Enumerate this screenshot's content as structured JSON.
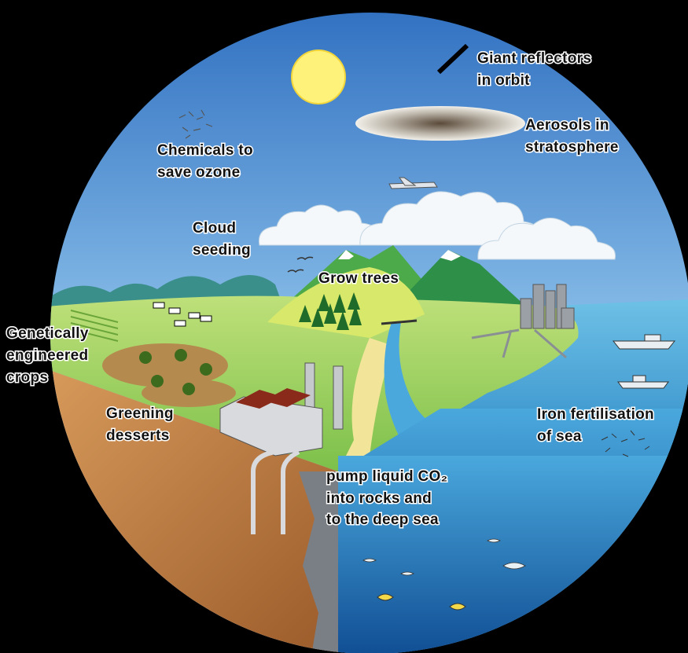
{
  "labels": [
    {
      "lines": [
        "Giant reflectors",
        "in orbit"
      ]
    },
    {
      "lines": [
        "Aerosols in",
        "stratosphere"
      ]
    },
    {
      "lines": [
        "Chemicals to",
        "save ozone"
      ]
    },
    {
      "lines": [
        "Cloud",
        "seeding"
      ]
    },
    {
      "lines": [
        "Grow trees"
      ]
    },
    {
      "lines": [
        "Genetically",
        "engineered",
        "crops"
      ]
    },
    {
      "lines": [
        "Greening",
        "desserts"
      ]
    },
    {
      "lines": [
        "Iron fertilisation",
        "of sea"
      ]
    },
    {
      "lines": [
        "pump liquid CO₂",
        "into rocks and",
        "to the deep sea"
      ]
    }
  ]
}
